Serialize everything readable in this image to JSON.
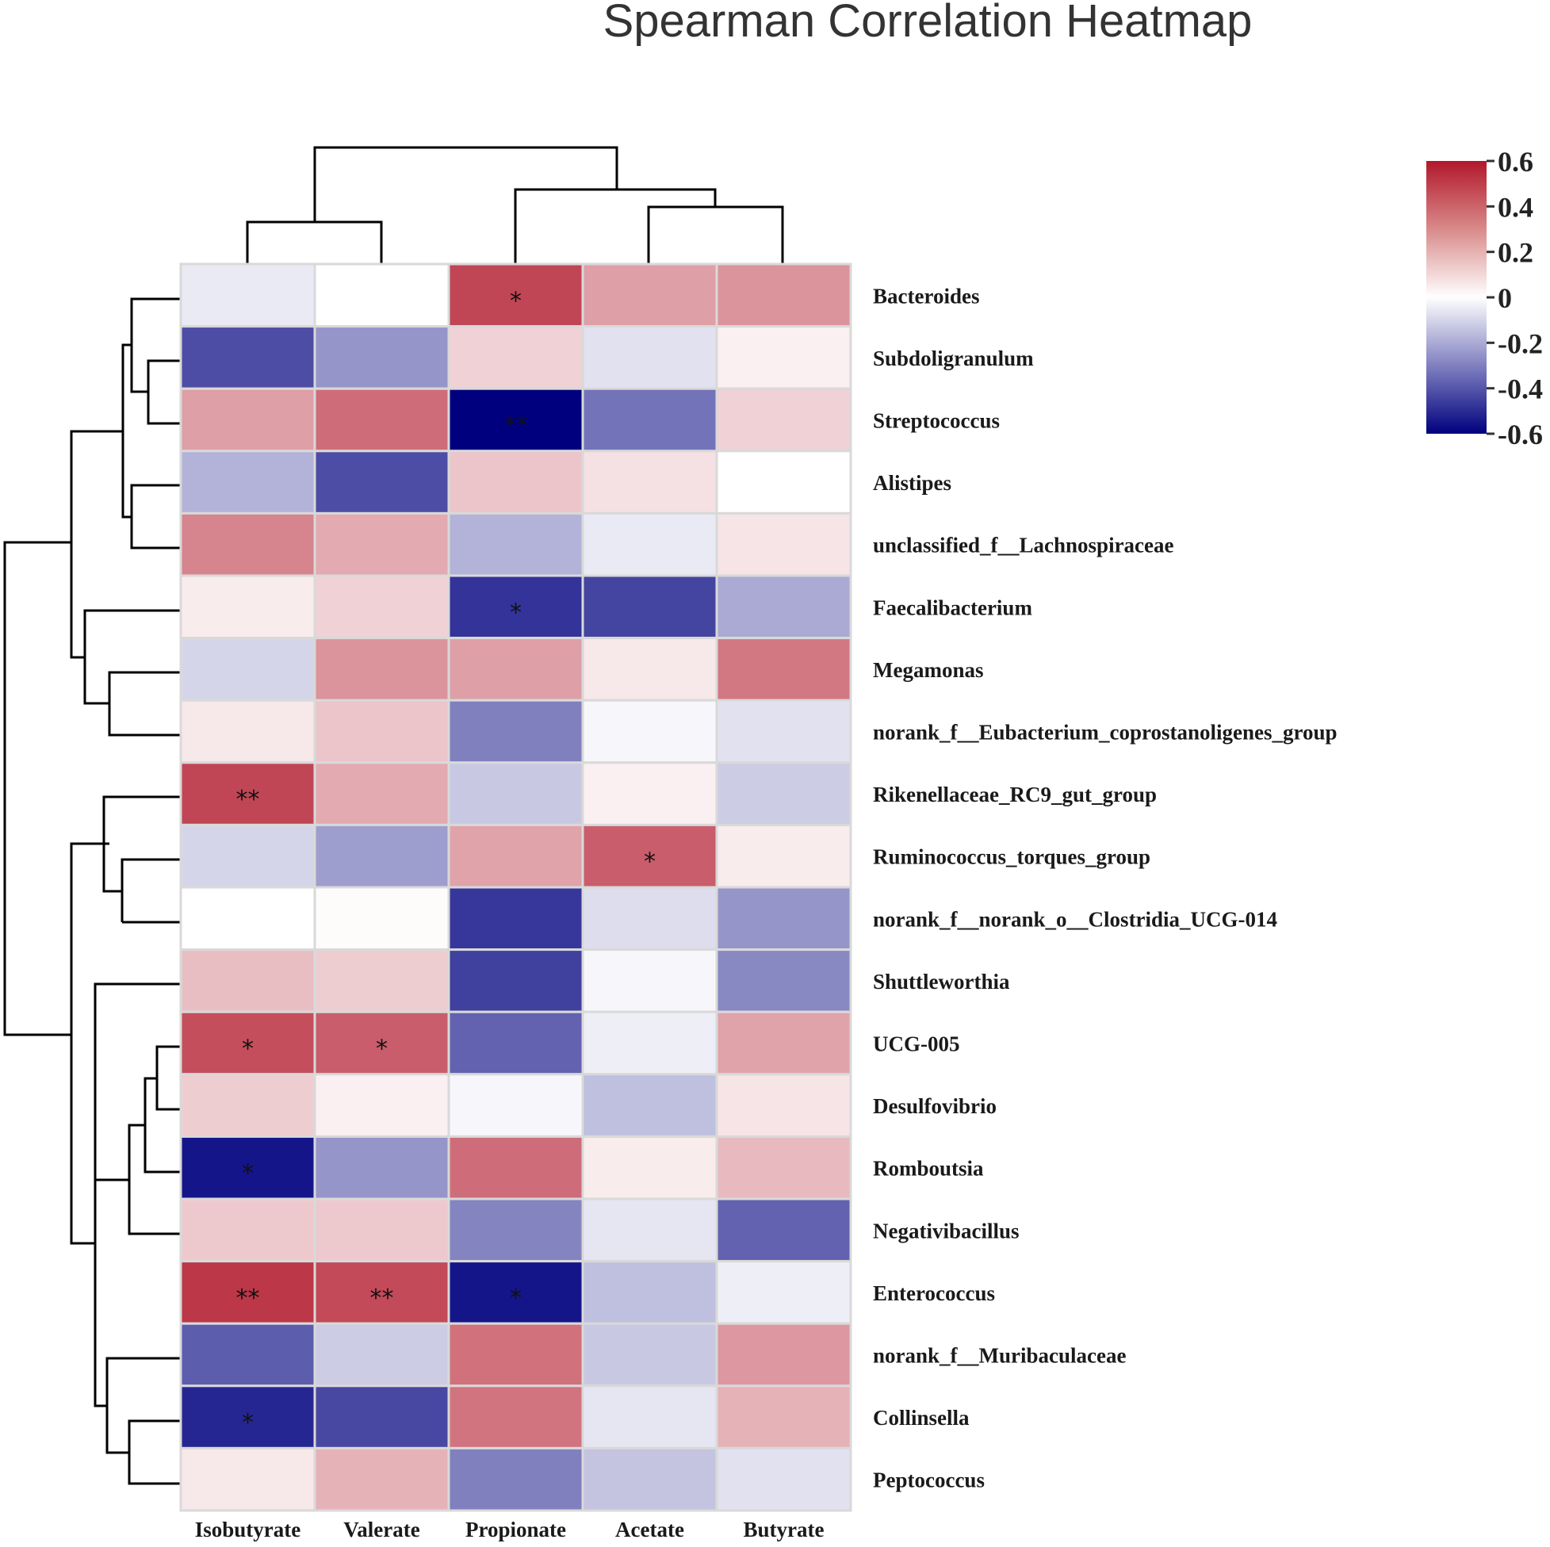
{
  "chart_data": {
    "type": "heatmap",
    "title": "Spearman Correlation Heatmap",
    "columns": [
      "Isobutyrate",
      "Valerate",
      "Propionate",
      "Acetate",
      "Butyrate"
    ],
    "rows": [
      "Bacteroides",
      "Subdoligranulum",
      "Streptococcus",
      "Alistipes",
      "unclassified_f__Lachnospiraceae",
      "Faecalibacterium",
      "Megamonas",
      "norank_f__Eubacterium_coprostanoligenes_group",
      "Rikenellaceae_RC9_gut_group",
      "Ruminococcus_torques_group",
      "norank_f__norank_o__Clostridia_UCG-014",
      "Shuttleworthia",
      "UCG-005",
      "Desulfovibrio",
      "Romboutsia",
      "Negativibacillus",
      "Enterococcus",
      "norank_f__Muribaculaceae",
      "Collinsella",
      "Peptococcus"
    ],
    "values": [
      [
        -0.05,
        0.0,
        0.48,
        0.25,
        0.28
      ],
      [
        -0.42,
        -0.25,
        0.12,
        -0.07,
        0.04
      ],
      [
        0.25,
        0.38,
        -0.6,
        -0.33,
        0.12
      ],
      [
        -0.18,
        -0.42,
        0.15,
        0.08,
        0.0
      ],
      [
        0.32,
        0.22,
        -0.18,
        -0.05,
        0.07
      ],
      [
        0.05,
        0.12,
        -0.48,
        -0.44,
        -0.2
      ],
      [
        -0.1,
        0.28,
        0.25,
        0.06,
        0.35
      ],
      [
        0.06,
        0.15,
        -0.3,
        -0.02,
        -0.07
      ],
      [
        0.48,
        0.22,
        -0.13,
        0.04,
        -0.12
      ],
      [
        -0.1,
        -0.23,
        0.24,
        0.42,
        0.05
      ],
      [
        0.0,
        0.01,
        -0.47,
        -0.08,
        -0.25
      ],
      [
        0.17,
        0.13,
        -0.45,
        -0.02,
        -0.28
      ],
      [
        0.46,
        0.42,
        -0.37,
        -0.04,
        0.24
      ],
      [
        0.13,
        0.04,
        -0.02,
        -0.15,
        0.07
      ],
      [
        -0.55,
        -0.25,
        0.38,
        0.05,
        0.18
      ],
      [
        0.14,
        0.14,
        -0.29,
        -0.06,
        -0.37
      ],
      [
        0.52,
        0.47,
        -0.55,
        -0.15,
        -0.04
      ],
      [
        -0.38,
        -0.12,
        0.37,
        -0.13,
        0.27
      ],
      [
        -0.51,
        -0.43,
        0.36,
        -0.06,
        0.2
      ],
      [
        0.06,
        0.2,
        -0.3,
        -0.14,
        -0.07
      ]
    ],
    "significance": [
      [
        "",
        "",
        "*",
        "",
        ""
      ],
      [
        "",
        "",
        "",
        "",
        ""
      ],
      [
        "",
        "",
        "**",
        "",
        ""
      ],
      [
        "",
        "",
        "",
        "",
        ""
      ],
      [
        "",
        "",
        "",
        "",
        ""
      ],
      [
        "",
        "",
        "*",
        "",
        ""
      ],
      [
        "",
        "",
        "",
        "",
        ""
      ],
      [
        "",
        "",
        "",
        "",
        ""
      ],
      [
        "**",
        "",
        "",
        "",
        ""
      ],
      [
        "",
        "",
        "",
        "*",
        ""
      ],
      [
        "",
        "",
        "",
        "",
        ""
      ],
      [
        "",
        "",
        "",
        "",
        ""
      ],
      [
        "*",
        "*",
        "",
        "",
        ""
      ],
      [
        "",
        "",
        "",
        "",
        ""
      ],
      [
        "*",
        "",
        "",
        "",
        ""
      ],
      [
        "",
        "",
        "",
        "",
        ""
      ],
      [
        "**",
        "**",
        "*",
        "",
        ""
      ],
      [
        "",
        "",
        "",
        "",
        ""
      ],
      [
        "*",
        "",
        "",
        "",
        ""
      ],
      [
        "",
        "",
        "",
        "",
        ""
      ]
    ],
    "colorbar": {
      "range": [
        -0.6,
        0.6
      ],
      "ticks": [
        0.6,
        0.4,
        0.2,
        0,
        -0.2,
        -0.4,
        -0.6
      ],
      "tick_labels": [
        "0.6",
        "0.4",
        "0.2",
        "0",
        "-0.2",
        "-0.4",
        "-0.6"
      ],
      "colors": {
        "high": "#b2182b",
        "mid": "#ffffff",
        "low": "#00007f"
      }
    }
  }
}
